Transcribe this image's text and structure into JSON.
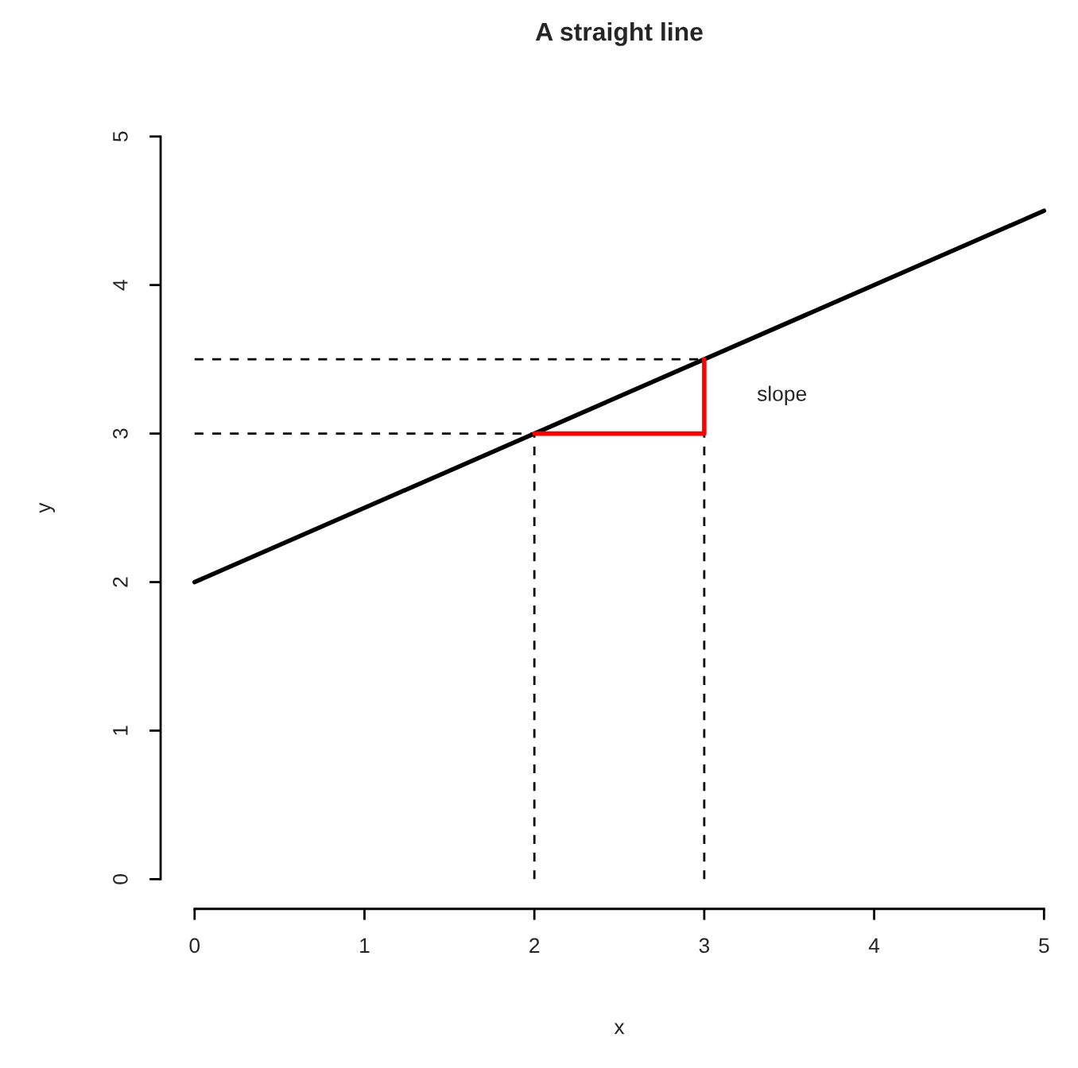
{
  "chart_data": {
    "type": "line",
    "title": "A straight line",
    "xlabel": "x",
    "ylabel": "y",
    "xlim": [
      0,
      5
    ],
    "ylim": [
      0,
      5
    ],
    "xticks": [
      0,
      1,
      2,
      3,
      4,
      5
    ],
    "yticks": [
      0,
      1,
      2,
      3,
      4,
      5
    ],
    "grid": false,
    "legend": false,
    "marker": "none",
    "series": [
      {
        "color": "#000000",
        "line_style": "solid",
        "x": [
          0,
          5
        ],
        "values": [
          2,
          4.5
        ]
      },
      {
        "color": "#000000",
        "line_style": "dashed",
        "x": [
          0,
          2
        ],
        "values": [
          3,
          3
        ]
      },
      {
        "color": "#000000",
        "line_style": "dashed",
        "x": [
          0,
          3
        ],
        "values": [
          3.5,
          3.5
        ]
      },
      {
        "color": "#000000",
        "line_style": "dashed",
        "x": [
          2,
          2
        ],
        "values": [
          0,
          3
        ]
      },
      {
        "color": "#000000",
        "line_style": "dashed",
        "x": [
          3,
          3
        ],
        "values": [
          0,
          3.5
        ]
      },
      {
        "color": "#ff0000",
        "line_style": "solid",
        "x": [
          2,
          3,
          3
        ],
        "values": [
          3,
          3,
          3.5
        ]
      }
    ],
    "annotations": [
      "slope"
    ]
  }
}
